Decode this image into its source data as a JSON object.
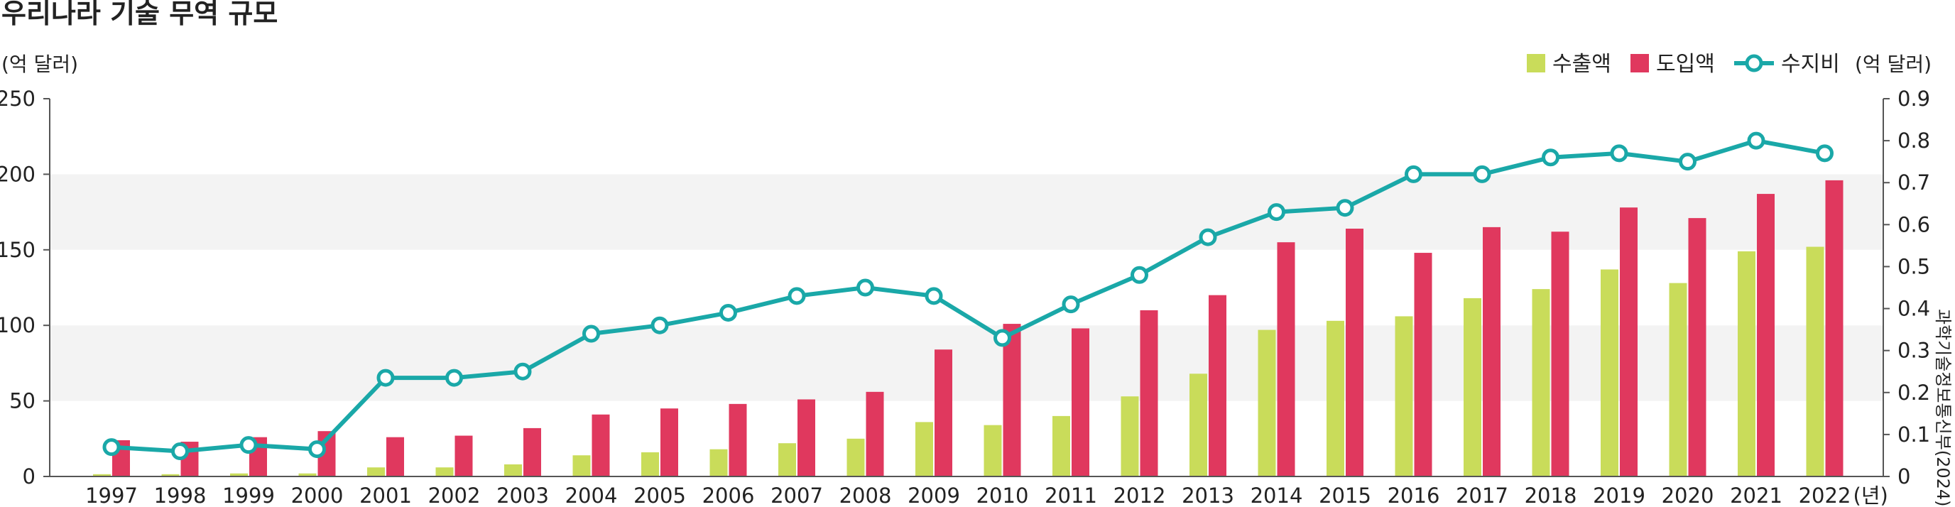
{
  "title": "우리나라 기술 무역 규모",
  "left_unit": "(억 달러)",
  "right_unit": "(억 달러)",
  "x_unit": "(년)",
  "source": "과학기술정보통신부(2024)",
  "colors": {
    "export": "#c9dc5a",
    "import": "#e0385e",
    "ratio": "#1aa8a8",
    "band": "#f3f3f3"
  },
  "chart_data": {
    "type": "bar",
    "categories": [
      "1997",
      "1998",
      "1999",
      "2000",
      "2001",
      "2002",
      "2003",
      "2004",
      "2005",
      "2006",
      "2007",
      "2008",
      "2009",
      "2010",
      "2011",
      "2012",
      "2013",
      "2014",
      "2015",
      "2016",
      "2017",
      "2018",
      "2019",
      "2020",
      "2021",
      "2022"
    ],
    "series": [
      {
        "name": "수출액",
        "type": "bar",
        "axis": "left",
        "values": [
          1.5,
          1.5,
          2,
          2,
          6,
          6,
          8,
          14,
          16,
          18,
          22,
          25,
          36,
          34,
          40,
          53,
          68,
          97,
          103,
          106,
          118,
          124,
          137,
          128,
          149,
          152
        ]
      },
      {
        "name": "도입액",
        "type": "bar",
        "axis": "left",
        "values": [
          24,
          23,
          26,
          30,
          26,
          27,
          32,
          41,
          45,
          48,
          51,
          56,
          84,
          101,
          98,
          110,
          120,
          155,
          164,
          148,
          165,
          162,
          178,
          171,
          187,
          196
        ]
      },
      {
        "name": "수지비",
        "type": "line",
        "axis": "right",
        "values": [
          0.07,
          0.06,
          0.075,
          0.065,
          0.235,
          0.235,
          0.25,
          0.34,
          0.36,
          0.39,
          0.43,
          0.45,
          0.43,
          0.33,
          0.41,
          0.48,
          0.57,
          0.63,
          0.64,
          0.72,
          0.72,
          0.76,
          0.77,
          0.75,
          0.8,
          0.77
        ]
      }
    ],
    "ylim": [
      0,
      250
    ],
    "yticks": [
      "0",
      "50",
      "100",
      "150",
      "200",
      "250"
    ],
    "y2lim": [
      0,
      0.9
    ],
    "y2ticks": [
      "0",
      "0.1",
      "0.2",
      "0.3",
      "0.4",
      "0.5",
      "0.6",
      "0.7",
      "0.8",
      "0.9"
    ],
    "legend_position": "top-right",
    "grid": "alternating bands"
  }
}
